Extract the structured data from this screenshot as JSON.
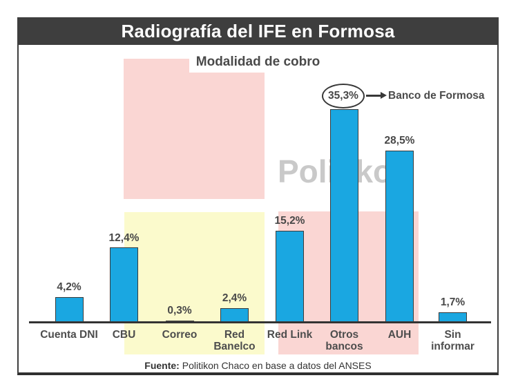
{
  "header": {
    "title": "Radiografía del IFE en Formosa"
  },
  "chart": {
    "subtitle": "Modalidad de cobro",
    "watermark": "Politikon",
    "annotation": {
      "value": "35,3%",
      "label": "Banco de Formosa"
    }
  },
  "footer": {
    "source_prefix": "Fuente:",
    "source_rest": " Politikon Chaco en base a datos del ANSES"
  },
  "colors": {
    "banner": "#3e3e3e",
    "bar_blue": "#1aa7e1",
    "band_pink": "#fad6d3",
    "band_yellow": "#fbfacc",
    "watermark_gray": "#c9c9c9",
    "label_text": "#4a4a4a"
  },
  "chart_data": {
    "type": "bar",
    "title": "Radiografía del IFE en Formosa",
    "subtitle": "Modalidad de cobro",
    "categories": [
      "Cuenta DNI",
      "CBU",
      "Correo",
      "Red Banelco",
      "Red Link",
      "Otros bancos",
      "AUH",
      "Sin informar"
    ],
    "category_lines": [
      [
        "Cuenta DNI"
      ],
      [
        "CBU"
      ],
      [
        "Correo"
      ],
      [
        "Red",
        "Banelco"
      ],
      [
        "Red Link"
      ],
      [
        "Otros",
        "bancos"
      ],
      [
        "AUH"
      ],
      [
        "Sin",
        "informar"
      ]
    ],
    "values": [
      4.2,
      12.4,
      0.3,
      2.4,
      15.2,
      35.3,
      28.5,
      1.7
    ],
    "value_labels": [
      "4,2%",
      "12,4%",
      "0,3%",
      "2,4%",
      "15,2%",
      "35,3%",
      "28,5%",
      "1,7%"
    ],
    "unit": "%",
    "annotated_index": 5,
    "annotation": {
      "category": "Otros bancos",
      "value": 35.3,
      "label": "Banco de Formosa"
    },
    "highlight_bands": [
      "pink: Cuenta DNI area upper",
      "yellow: CBU–Red Banelco",
      "pink: Red Link–AUH"
    ],
    "source": "Fuente: Politikon Chaco en base a datos del ANSES",
    "ylim": [
      0,
      38
    ],
    "grid": false,
    "legend": false
  }
}
